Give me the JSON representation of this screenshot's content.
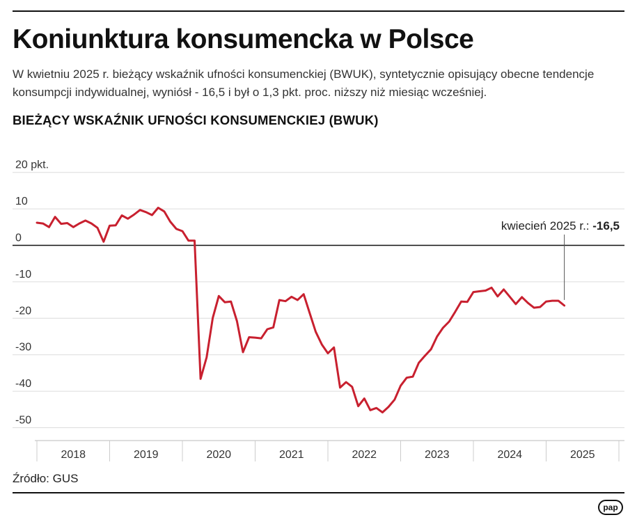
{
  "header": {
    "title": "Koniunktura konsumencka w Polsce",
    "subtitle": "W kwietniu 2025 r. bieżący wskaźnik ufności konsumenckiej (BWUK), syntetycznie opisujący obecne tendencje konsumpcji indywidualnej, wyniósł - 16,5 i był o 1,3 pkt. proc. niższy niż miesiąc wcześniej.",
    "chart_heading": "BIEŻĄCY WSKAŹNIK UFNOŚCI KONSUMENCKIEJ (BWUK)"
  },
  "footer": {
    "source": "Źródło: GUS",
    "logo": "pap"
  },
  "colors": {
    "line": "#c8202f",
    "zero_line": "#111111",
    "grid": "#dcdcdc",
    "text": "#333333"
  },
  "chart_data": {
    "type": "line",
    "title": "BIEŻĄCY WSKAŹNIK UFNOŚCI KONSUMENCKIEJ (BWUK)",
    "unit_label": "20 pkt.",
    "ylim": [
      -52,
      22
    ],
    "y_ticks": [
      {
        "value": 20,
        "label": "20 pkt."
      },
      {
        "value": 10,
        "label": "10"
      },
      {
        "value": 0,
        "label": "0"
      },
      {
        "value": -10,
        "label": "-10"
      },
      {
        "value": -20,
        "label": "-20"
      },
      {
        "value": -30,
        "label": "-30"
      },
      {
        "value": -40,
        "label": "-40"
      },
      {
        "value": -50,
        "label": "-50"
      }
    ],
    "x_categories": [
      "2018",
      "2019",
      "2020",
      "2021",
      "2022",
      "2023",
      "2024",
      "2025"
    ],
    "grid": true,
    "annotation": {
      "label": "kwiecień 2025 r.:",
      "value_label": "-16,5",
      "x": 2025.25,
      "y": -16.5
    },
    "series": [
      {
        "x": [
          2018.0,
          2018.083,
          2018.167,
          2018.25,
          2018.333,
          2018.417,
          2018.5,
          2018.583,
          2018.667,
          2018.75,
          2018.833,
          2018.917,
          2019.0,
          2019.083,
          2019.167,
          2019.25,
          2019.333,
          2019.417,
          2019.5,
          2019.583,
          2019.667,
          2019.75,
          2019.833,
          2019.917,
          2020.0,
          2020.083,
          2020.167,
          2020.25,
          2020.333,
          2020.417,
          2020.5,
          2020.583,
          2020.667,
          2020.75,
          2020.833,
          2020.917,
          2021.0,
          2021.083,
          2021.167,
          2021.25,
          2021.333,
          2021.417,
          2021.5,
          2021.583,
          2021.667,
          2021.75,
          2021.833,
          2021.917,
          2022.0,
          2022.083,
          2022.167,
          2022.25,
          2022.333,
          2022.417,
          2022.5,
          2022.583,
          2022.667,
          2022.75,
          2022.833,
          2022.917,
          2023.0,
          2023.083,
          2023.167,
          2023.25,
          2023.333,
          2023.417,
          2023.5,
          2023.583,
          2023.667,
          2023.75,
          2023.833,
          2023.917,
          2024.0,
          2024.083,
          2024.167,
          2024.25,
          2024.333,
          2024.417,
          2024.5,
          2024.583,
          2024.667,
          2024.75,
          2024.833,
          2024.917,
          2025.0,
          2025.083,
          2025.167,
          2025.25
        ],
        "values": [
          6.2,
          6.0,
          5.0,
          7.8,
          5.9,
          6.1,
          5.0,
          6.0,
          6.8,
          6.0,
          4.8,
          1.0,
          5.4,
          5.5,
          8.2,
          7.3,
          8.4,
          9.7,
          9.1,
          8.3,
          10.3,
          9.3,
          6.5,
          4.5,
          3.9,
          1.3,
          1.3,
          -36.6,
          -30.7,
          -19.9,
          -13.9,
          -15.6,
          -15.4,
          -20.8,
          -29.3,
          -25.2,
          -25.3,
          -25.5,
          -23.0,
          -22.5,
          -15.0,
          -15.3,
          -14.1,
          -15.0,
          -13.4,
          -18.6,
          -23.7,
          -27.2,
          -29.6,
          -28.0,
          -39.0,
          -37.5,
          -38.8,
          -44.1,
          -42.0,
          -45.2,
          -44.6,
          -45.8,
          -44.3,
          -42.3,
          -38.5,
          -36.3,
          -36.0,
          -32.2,
          -30.3,
          -28.5,
          -25.0,
          -22.6,
          -20.9,
          -18.2,
          -15.4,
          -15.5,
          -12.8,
          -12.6,
          -12.4,
          -11.6,
          -14.0,
          -12.1,
          -14.1,
          -16.1,
          -14.2,
          -15.8,
          -17.1,
          -16.9,
          -15.4,
          -15.2,
          -15.2,
          -16.5
        ]
      }
    ]
  }
}
